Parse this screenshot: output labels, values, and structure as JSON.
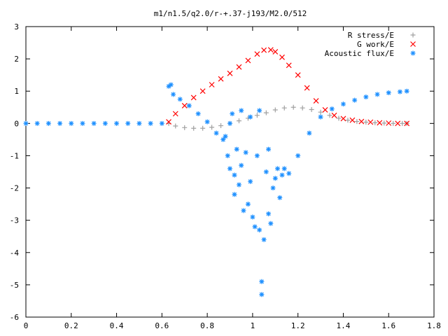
{
  "chart_data": {
    "type": "scatter",
    "title": "m1/n1.5/q2.0/r-+.37-j193/M2.0/512",
    "xlabel": "",
    "ylabel": "",
    "xlim": [
      0,
      1.8
    ],
    "ylim": [
      -6,
      3
    ],
    "x_ticks": [
      "0",
      "0.2",
      "0.4",
      "0.6",
      "0.8",
      "1",
      "1.2",
      "1.4",
      "1.6",
      "1.8"
    ],
    "y_ticks": [
      "3",
      "2",
      "1",
      "0",
      "-1",
      "-2",
      "-3",
      "-4",
      "-5",
      "-6"
    ],
    "grid": false,
    "legend_position": "top-right",
    "series": [
      {
        "name": "R stress/E",
        "marker": "+",
        "color": "#a0a0a0",
        "x": [
          0.63,
          0.66,
          0.7,
          0.74,
          0.78,
          0.82,
          0.86,
          0.9,
          0.94,
          0.98,
          1.02,
          1.06,
          1.1,
          1.14,
          1.18,
          1.22,
          1.26,
          1.3,
          1.34,
          1.38,
          1.42,
          1.46,
          1.5,
          1.54,
          1.58,
          1.62,
          1.66,
          1.68
        ],
        "y": [
          0.0,
          -0.08,
          -0.13,
          -0.15,
          -0.15,
          -0.12,
          -0.07,
          0.0,
          0.08,
          0.16,
          0.25,
          0.33,
          0.42,
          0.48,
          0.5,
          0.48,
          0.43,
          0.35,
          0.25,
          0.16,
          0.1,
          0.06,
          0.04,
          0.02,
          0.01,
          0.0,
          0.0,
          0.0
        ]
      },
      {
        "name": "G work/E",
        "marker": "x",
        "color": "#ff0000",
        "x": [
          0.63,
          0.66,
          0.7,
          0.74,
          0.78,
          0.82,
          0.86,
          0.9,
          0.94,
          0.98,
          1.02,
          1.05,
          1.08,
          1.1,
          1.13,
          1.16,
          1.2,
          1.24,
          1.28,
          1.32,
          1.36,
          1.4,
          1.44,
          1.48,
          1.52,
          1.56,
          1.6,
          1.64,
          1.68
        ],
        "y": [
          0.05,
          0.3,
          0.55,
          0.8,
          1.0,
          1.2,
          1.38,
          1.55,
          1.75,
          1.95,
          2.15,
          2.27,
          2.28,
          2.22,
          2.05,
          1.8,
          1.5,
          1.1,
          0.7,
          0.42,
          0.25,
          0.15,
          0.1,
          0.06,
          0.04,
          0.02,
          0.01,
          0.0,
          0.0
        ]
      },
      {
        "name": "Acoustic flux/E",
        "marker": "*",
        "color": "#1e90ff",
        "x": [
          0.0,
          0.05,
          0.1,
          0.15,
          0.2,
          0.25,
          0.3,
          0.35,
          0.4,
          0.45,
          0.5,
          0.55,
          0.6,
          0.63,
          0.64,
          0.65,
          0.68,
          0.72,
          0.76,
          0.8,
          0.84,
          0.87,
          0.88,
          0.89,
          0.9,
          0.9,
          0.91,
          0.92,
          0.92,
          0.93,
          0.94,
          0.95,
          0.95,
          0.96,
          0.97,
          0.98,
          0.99,
          0.99,
          1.0,
          1.01,
          1.02,
          1.03,
          1.03,
          1.04,
          1.04,
          1.05,
          1.06,
          1.07,
          1.07,
          1.08,
          1.09,
          1.1,
          1.11,
          1.12,
          1.13,
          1.14,
          1.16,
          1.2,
          1.25,
          1.3,
          1.35,
          1.4,
          1.45,
          1.5,
          1.55,
          1.6,
          1.65,
          1.68
        ],
        "y": [
          0.0,
          0.0,
          0.0,
          0.0,
          0.0,
          0.0,
          0.0,
          0.0,
          0.0,
          0.0,
          0.0,
          0.0,
          0.0,
          1.15,
          1.2,
          0.9,
          0.75,
          0.55,
          0.3,
          0.05,
          -0.3,
          -0.5,
          -0.4,
          -1.0,
          -1.4,
          0.0,
          0.3,
          -1.6,
          -2.2,
          -0.8,
          -1.9,
          -1.3,
          0.4,
          -2.7,
          -0.9,
          -2.5,
          -1.8,
          0.2,
          -2.9,
          -3.2,
          -1.0,
          -3.3,
          0.4,
          -4.9,
          -5.3,
          -3.6,
          -1.5,
          -2.8,
          -0.8,
          -3.1,
          -2.0,
          -1.7,
          -1.4,
          -2.3,
          -1.6,
          -1.4,
          -1.55,
          -1.0,
          -0.3,
          0.2,
          0.45,
          0.6,
          0.72,
          0.82,
          0.9,
          0.95,
          0.98,
          1.0
        ]
      }
    ]
  }
}
